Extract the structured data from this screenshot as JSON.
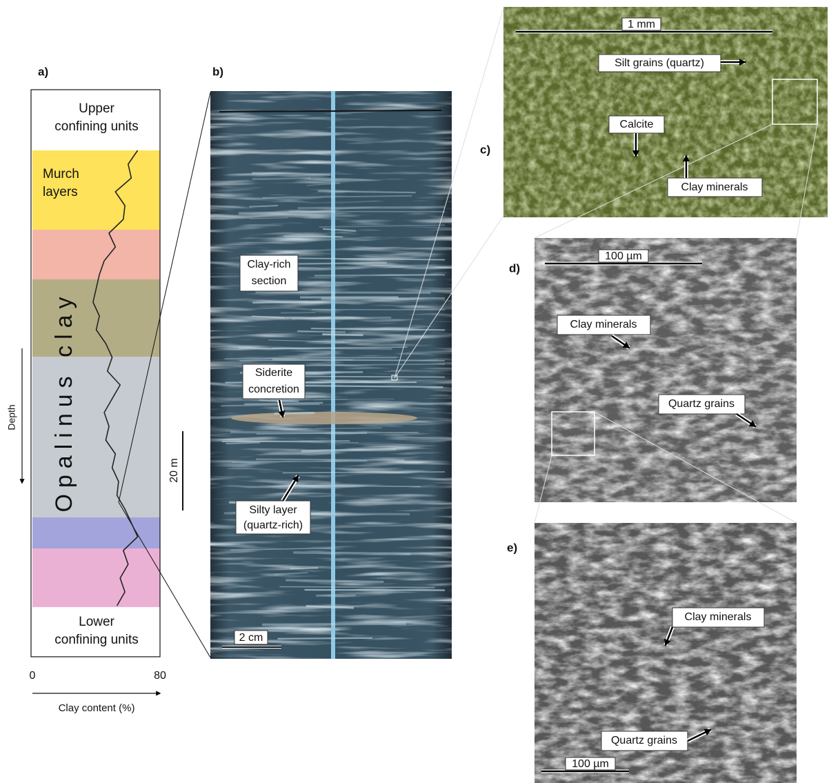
{
  "panels": {
    "a": {
      "label": "a)",
      "upper": [
        "Upper",
        "confining units"
      ],
      "murch": [
        "Murch",
        "layers"
      ],
      "unit": "Opalinus clay",
      "lower": [
        "Lower",
        "confining units"
      ],
      "scale": "20 m"
    },
    "b": {
      "label": "b)",
      "notes": [
        [
          "Clay-rich",
          "section"
        ],
        [
          "Siderite",
          "concretion"
        ],
        [
          "Silty layer",
          "(quartz-rich)"
        ]
      ],
      "scale": "2 cm"
    },
    "c": {
      "label": "c)",
      "scale": "1 mm",
      "notes": [
        "Silt grains (quartz)",
        "Calcite",
        "Clay minerals"
      ]
    },
    "d": {
      "label": "d)",
      "scale": "100 µm",
      "notes": [
        "Clay minerals",
        "Quartz grains"
      ]
    },
    "e": {
      "label": "e)",
      "scale": "100 µm",
      "notes": [
        "Clay minerals",
        "Quartz grains"
      ]
    }
  },
  "chart_data": {
    "type": "line",
    "x_label": "Clay content (%)",
    "y_label": "Depth",
    "xlim": [
      0,
      80
    ],
    "xticks": [
      0,
      80
    ],
    "color": "#222",
    "values": [
      66,
      60,
      62,
      52,
      58,
      57,
      48,
      52,
      45,
      42,
      40,
      38,
      42,
      40,
      46,
      50,
      47,
      55,
      50,
      45,
      48,
      46,
      52,
      50,
      54,
      53,
      58,
      62,
      66,
      57,
      60,
      55,
      58,
      53
    ]
  }
}
